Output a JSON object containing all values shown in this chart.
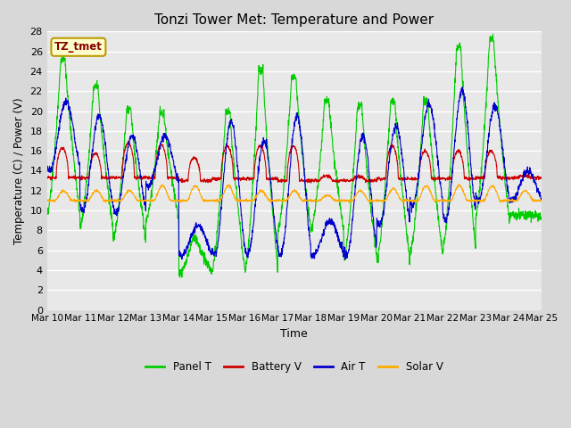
{
  "title": "Tonzi Tower Met: Temperature and Power",
  "xlabel": "Time",
  "ylabel": "Temperature (C) / Power (V)",
  "ylim": [
    0,
    28
  ],
  "yticks": [
    0,
    2,
    4,
    6,
    8,
    10,
    12,
    14,
    16,
    18,
    20,
    22,
    24,
    26,
    28
  ],
  "x_labels": [
    "Mar 10",
    "Mar 11",
    "Mar 12",
    "Mar 13",
    "Mar 14",
    "Mar 15",
    "Mar 16",
    "Mar 17",
    "Mar 18",
    "Mar 19",
    "Mar 20",
    "Mar 21",
    "Mar 22",
    "Mar 23",
    "Mar 24",
    "Mar 25"
  ],
  "bg_color": "#d8d8d8",
  "plot_bg_color": "#e8e8e8",
  "grid_color": "#ffffff",
  "tag_text": "TZ_tmet",
  "tag_bg": "#ffffcc",
  "tag_border": "#bb9900",
  "tag_text_color": "#880000",
  "legend": [
    {
      "label": "Panel T",
      "color": "#00cc00"
    },
    {
      "label": "Battery V",
      "color": "#cc0000"
    },
    {
      "label": "Air T",
      "color": "#0000cc"
    },
    {
      "label": "Solar V",
      "color": "#ffaa00"
    }
  ],
  "panel_t_color": "#00cc00",
  "battery_v_color": "#cc0000",
  "air_t_color": "#0000cc",
  "solar_v_color": "#ffaa00",
  "n_days": 15,
  "pts_per_day": 144,
  "panel_t_peaks": [
    25.3,
    22.5,
    20.2,
    19.8,
    7.2,
    20.0,
    24.0,
    23.5,
    21.0,
    20.5,
    21.0,
    21.0,
    26.5,
    27.2,
    9.5
  ],
  "panel_t_troughs": [
    9.5,
    8.3,
    7.0,
    9.0,
    3.7,
    4.0,
    4.0,
    8.0,
    7.8,
    5.3,
    5.0,
    5.5,
    6.0,
    9.5,
    9.5
  ],
  "battery_v_peaks": [
    16.3,
    15.7,
    16.8,
    16.6,
    15.3,
    16.5,
    16.5,
    16.5,
    13.5,
    13.4,
    16.5,
    16.0,
    16.0,
    16.0,
    13.5
  ],
  "battery_v_base": [
    13.3,
    13.3,
    13.3,
    13.3,
    13.0,
    13.2,
    13.2,
    13.0,
    13.0,
    13.0,
    13.2,
    13.2,
    13.2,
    13.3,
    13.3
  ],
  "air_t_peaks": [
    21.0,
    19.5,
    17.5,
    17.5,
    8.5,
    19.0,
    17.0,
    19.5,
    9.0,
    17.5,
    18.5,
    20.7,
    22.0,
    20.5,
    14.0
  ],
  "air_t_troughs": [
    14.0,
    10.0,
    9.8,
    12.5,
    5.5,
    5.5,
    5.5,
    5.5,
    5.5,
    5.5,
    8.5,
    10.5,
    9.0,
    11.0,
    11.0
  ],
  "solar_v_peaks": [
    12.0,
    12.0,
    12.0,
    12.5,
    12.5,
    12.5,
    12.0,
    12.0,
    11.5,
    12.0,
    12.2,
    12.5,
    12.5,
    12.5,
    12.0
  ],
  "solar_v_base": [
    11.0,
    11.0,
    11.0,
    11.0,
    11.0,
    11.0,
    11.0,
    11.0,
    11.0,
    11.0,
    11.0,
    11.0,
    11.0,
    11.0,
    11.0
  ],
  "figwidth": 6.4,
  "figheight": 4.8,
  "dpi": 100
}
